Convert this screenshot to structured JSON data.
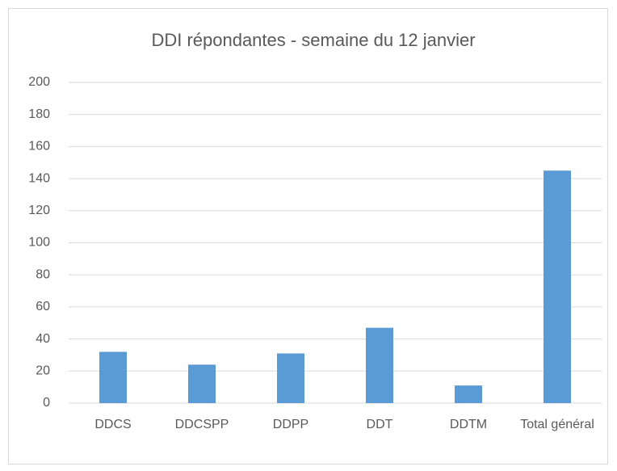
{
  "chart_data": {
    "type": "bar",
    "title": "DDI répondantes - semaine du 12 janvier",
    "categories": [
      "DDCS",
      "DDCSPP",
      "DDPP",
      "DDT",
      "DDTM",
      "Total général"
    ],
    "values": [
      32,
      24,
      31,
      47,
      11,
      145
    ],
    "color": "#5b9bd5",
    "ylim": [
      0,
      200
    ],
    "yticks": [
      0,
      20,
      40,
      60,
      80,
      100,
      120,
      140,
      160,
      180,
      200
    ],
    "grid": true
  }
}
